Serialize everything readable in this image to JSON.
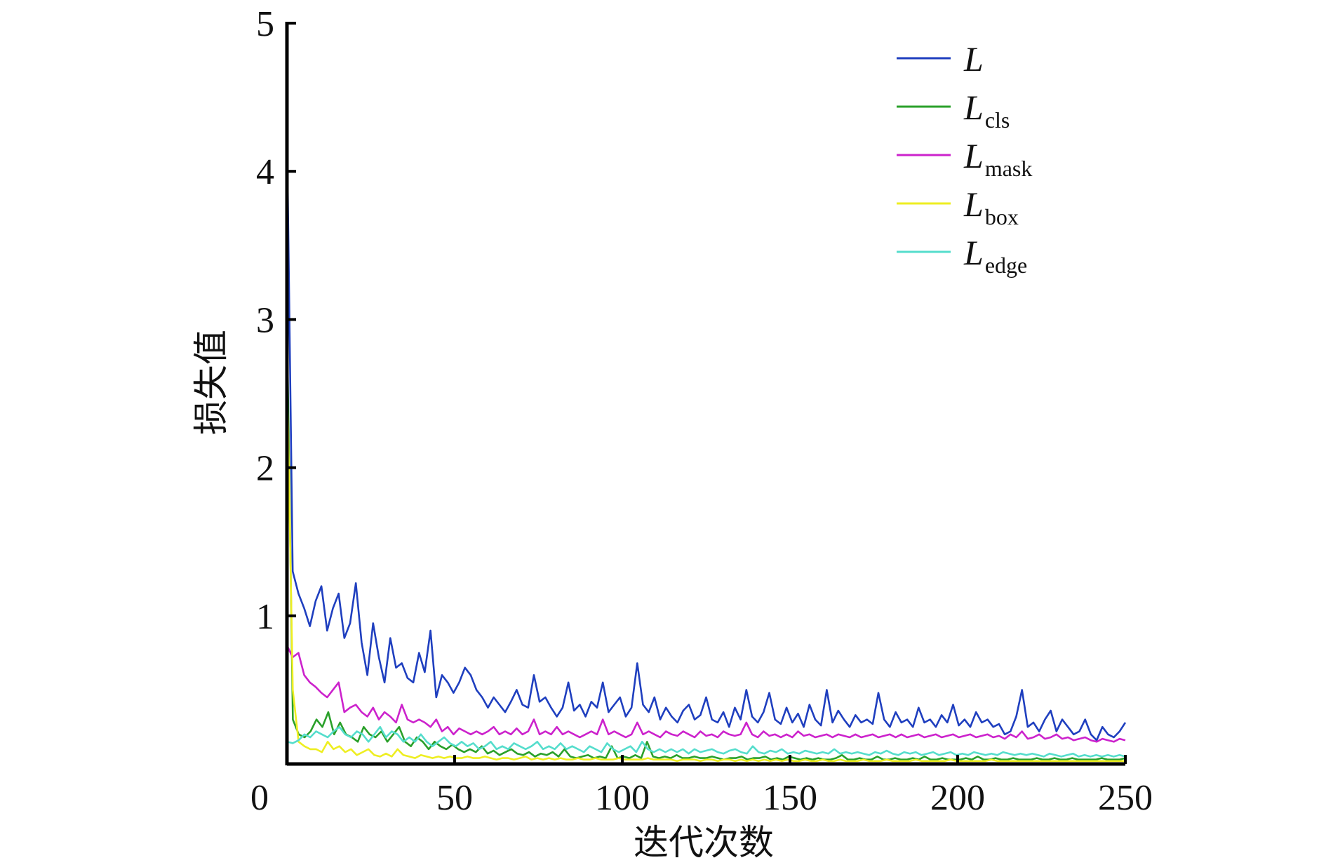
{
  "chart_data": {
    "type": "line",
    "title": "",
    "xlabel": "迭代次数",
    "ylabel": "损失值",
    "xlim": [
      0,
      250
    ],
    "ylim": [
      0,
      5
    ],
    "xticks": [
      0,
      50,
      100,
      150,
      200,
      250
    ],
    "yticks": [
      1,
      2,
      3,
      4,
      5
    ],
    "grid": false,
    "legend_position": "top-right",
    "series": [
      {
        "name": "L",
        "main": "L",
        "sub": "",
        "color": "#1f3fbf",
        "values": [
          4.3,
          1.3,
          1.15,
          1.05,
          0.93,
          1.1,
          1.2,
          0.9,
          1.05,
          1.15,
          0.85,
          0.95,
          1.22,
          0.82,
          0.6,
          0.95,
          0.72,
          0.55,
          0.85,
          0.65,
          0.68,
          0.58,
          0.55,
          0.75,
          0.62,
          0.9,
          0.45,
          0.6,
          0.55,
          0.48,
          0.55,
          0.65,
          0.6,
          0.5,
          0.45,
          0.38,
          0.45,
          0.4,
          0.35,
          0.42,
          0.5,
          0.4,
          0.38,
          0.6,
          0.42,
          0.45,
          0.38,
          0.32,
          0.38,
          0.55,
          0.36,
          0.4,
          0.32,
          0.42,
          0.38,
          0.55,
          0.35,
          0.4,
          0.45,
          0.32,
          0.38,
          0.68,
          0.4,
          0.35,
          0.45,
          0.3,
          0.38,
          0.32,
          0.28,
          0.36,
          0.4,
          0.3,
          0.33,
          0.45,
          0.3,
          0.28,
          0.35,
          0.25,
          0.38,
          0.3,
          0.5,
          0.32,
          0.28,
          0.35,
          0.48,
          0.3,
          0.27,
          0.38,
          0.28,
          0.34,
          0.25,
          0.4,
          0.3,
          0.26,
          0.5,
          0.28,
          0.36,
          0.3,
          0.25,
          0.33,
          0.28,
          0.3,
          0.27,
          0.48,
          0.3,
          0.25,
          0.35,
          0.28,
          0.3,
          0.25,
          0.38,
          0.28,
          0.3,
          0.25,
          0.33,
          0.28,
          0.4,
          0.26,
          0.3,
          0.25,
          0.35,
          0.28,
          0.3,
          0.25,
          0.27,
          0.2,
          0.22,
          0.32,
          0.5,
          0.25,
          0.28,
          0.22,
          0.3,
          0.36,
          0.22,
          0.3,
          0.25,
          0.2,
          0.22,
          0.3,
          0.2,
          0.16,
          0.25,
          0.2,
          0.18,
          0.22,
          0.28
        ]
      },
      {
        "name": "Lcls",
        "main": "L",
        "sub": "cls",
        "color": "#2aa02a",
        "values": [
          3.0,
          0.3,
          0.2,
          0.18,
          0.22,
          0.3,
          0.25,
          0.35,
          0.2,
          0.28,
          0.2,
          0.18,
          0.15,
          0.25,
          0.2,
          0.18,
          0.22,
          0.15,
          0.2,
          0.25,
          0.15,
          0.12,
          0.18,
          0.15,
          0.1,
          0.15,
          0.12,
          0.1,
          0.13,
          0.1,
          0.08,
          0.1,
          0.08,
          0.12,
          0.07,
          0.09,
          0.06,
          0.08,
          0.1,
          0.07,
          0.06,
          0.08,
          0.05,
          0.07,
          0.06,
          0.08,
          0.05,
          0.1,
          0.05,
          0.04,
          0.05,
          0.06,
          0.04,
          0.05,
          0.04,
          0.12,
          0.04,
          0.05,
          0.04,
          0.06,
          0.04,
          0.15,
          0.05,
          0.04,
          0.05,
          0.04,
          0.06,
          0.04,
          0.04,
          0.05,
          0.04,
          0.04,
          0.05,
          0.04,
          0.03,
          0.04,
          0.04,
          0.05,
          0.03,
          0.04,
          0.04,
          0.05,
          0.03,
          0.04,
          0.03,
          0.05,
          0.04,
          0.03,
          0.04,
          0.03,
          0.04,
          0.03,
          0.03,
          0.04,
          0.06,
          0.03,
          0.03,
          0.04,
          0.03,
          0.03,
          0.05,
          0.03,
          0.03,
          0.04,
          0.03,
          0.03,
          0.04,
          0.03,
          0.05,
          0.03,
          0.03,
          0.04,
          0.03,
          0.03,
          0.03,
          0.04,
          0.03,
          0.05,
          0.03,
          0.03,
          0.04,
          0.03,
          0.03,
          0.04,
          0.03,
          0.03,
          0.03,
          0.04,
          0.03,
          0.03,
          0.04,
          0.03,
          0.03,
          0.04,
          0.03,
          0.03,
          0.03,
          0.03,
          0.04,
          0.03,
          0.03,
          0.03,
          0.04
        ]
      },
      {
        "name": "Lmask",
        "main": "L",
        "sub": "mask",
        "color": "#cc22cc",
        "values": [
          0.8,
          0.72,
          0.75,
          0.6,
          0.55,
          0.52,
          0.48,
          0.45,
          0.5,
          0.55,
          0.35,
          0.38,
          0.4,
          0.35,
          0.32,
          0.38,
          0.3,
          0.35,
          0.32,
          0.28,
          0.4,
          0.3,
          0.28,
          0.3,
          0.28,
          0.25,
          0.3,
          0.22,
          0.25,
          0.2,
          0.24,
          0.22,
          0.2,
          0.22,
          0.2,
          0.22,
          0.25,
          0.2,
          0.22,
          0.2,
          0.24,
          0.2,
          0.22,
          0.3,
          0.2,
          0.22,
          0.2,
          0.25,
          0.2,
          0.22,
          0.2,
          0.18,
          0.2,
          0.22,
          0.2,
          0.3,
          0.2,
          0.22,
          0.2,
          0.18,
          0.2,
          0.28,
          0.2,
          0.22,
          0.2,
          0.18,
          0.22,
          0.2,
          0.19,
          0.22,
          0.2,
          0.18,
          0.22,
          0.19,
          0.2,
          0.18,
          0.22,
          0.2,
          0.19,
          0.2,
          0.28,
          0.2,
          0.18,
          0.22,
          0.19,
          0.2,
          0.18,
          0.2,
          0.18,
          0.22,
          0.19,
          0.2,
          0.18,
          0.19,
          0.2,
          0.18,
          0.2,
          0.19,
          0.18,
          0.2,
          0.18,
          0.19,
          0.2,
          0.18,
          0.19,
          0.2,
          0.18,
          0.2,
          0.18,
          0.19,
          0.2,
          0.18,
          0.19,
          0.2,
          0.18,
          0.19,
          0.2,
          0.18,
          0.19,
          0.2,
          0.18,
          0.19,
          0.2,
          0.18,
          0.19,
          0.17,
          0.2,
          0.18,
          0.22,
          0.17,
          0.18,
          0.2,
          0.17,
          0.18,
          0.2,
          0.17,
          0.18,
          0.16,
          0.17,
          0.18,
          0.16,
          0.15,
          0.17,
          0.16,
          0.15,
          0.17,
          0.16
        ]
      },
      {
        "name": "Lbox",
        "main": "L",
        "sub": "box",
        "color": "#eeee22",
        "values": [
          2.7,
          0.5,
          0.15,
          0.12,
          0.1,
          0.1,
          0.08,
          0.15,
          0.1,
          0.12,
          0.08,
          0.1,
          0.06,
          0.08,
          0.1,
          0.06,
          0.05,
          0.07,
          0.05,
          0.1,
          0.06,
          0.05,
          0.04,
          0.06,
          0.05,
          0.04,
          0.05,
          0.04,
          0.05,
          0.04,
          0.04,
          0.05,
          0.04,
          0.04,
          0.05,
          0.04,
          0.03,
          0.04,
          0.04,
          0.03,
          0.04,
          0.05,
          0.03,
          0.04,
          0.03,
          0.04,
          0.03,
          0.04,
          0.03,
          0.03,
          0.04,
          0.03,
          0.03,
          0.04,
          0.03,
          0.03,
          0.03,
          0.04,
          0.03,
          0.03,
          0.03,
          0.03,
          0.04,
          0.03,
          0.03,
          0.03,
          0.03,
          0.02,
          0.03,
          0.03,
          0.03,
          0.02,
          0.03,
          0.03,
          0.02,
          0.03,
          0.03,
          0.02,
          0.03,
          0.02,
          0.03,
          0.02,
          0.03,
          0.02,
          0.03,
          0.02,
          0.03,
          0.02,
          0.02,
          0.03,
          0.02,
          0.02,
          0.03,
          0.02,
          0.02,
          0.03,
          0.02,
          0.02,
          0.02,
          0.03,
          0.02,
          0.02,
          0.02,
          0.03,
          0.02,
          0.02,
          0.02,
          0.02,
          0.03,
          0.02,
          0.02,
          0.02,
          0.02,
          0.02,
          0.03,
          0.02,
          0.02,
          0.02,
          0.02,
          0.02,
          0.02,
          0.03,
          0.02,
          0.02,
          0.02,
          0.02,
          0.02,
          0.02,
          0.02,
          0.02,
          0.02,
          0.02,
          0.02,
          0.02,
          0.02,
          0.02,
          0.02,
          0.02,
          0.02,
          0.02,
          0.02,
          0.02,
          0.02,
          0.02,
          0.02
        ]
      },
      {
        "name": "Ledge",
        "main": "L",
        "sub": "edge",
        "color": "#55ddcc",
        "values": [
          0.15,
          0.14,
          0.16,
          0.2,
          0.18,
          0.22,
          0.2,
          0.18,
          0.22,
          0.25,
          0.2,
          0.18,
          0.22,
          0.2,
          0.15,
          0.2,
          0.25,
          0.18,
          0.22,
          0.2,
          0.15,
          0.18,
          0.15,
          0.2,
          0.15,
          0.12,
          0.15,
          0.18,
          0.14,
          0.12,
          0.15,
          0.12,
          0.14,
          0.1,
          0.12,
          0.15,
          0.1,
          0.12,
          0.1,
          0.14,
          0.12,
          0.1,
          0.12,
          0.15,
          0.1,
          0.12,
          0.1,
          0.14,
          0.1,
          0.12,
          0.1,
          0.08,
          0.12,
          0.1,
          0.08,
          0.14,
          0.1,
          0.08,
          0.1,
          0.12,
          0.08,
          0.15,
          0.1,
          0.08,
          0.1,
          0.08,
          0.1,
          0.08,
          0.1,
          0.07,
          0.1,
          0.08,
          0.09,
          0.1,
          0.08,
          0.07,
          0.09,
          0.1,
          0.08,
          0.07,
          0.12,
          0.08,
          0.07,
          0.09,
          0.08,
          0.1,
          0.07,
          0.08,
          0.07,
          0.09,
          0.08,
          0.07,
          0.08,
          0.07,
          0.1,
          0.07,
          0.08,
          0.07,
          0.08,
          0.07,
          0.06,
          0.08,
          0.07,
          0.09,
          0.07,
          0.06,
          0.08,
          0.07,
          0.08,
          0.06,
          0.07,
          0.08,
          0.06,
          0.07,
          0.08,
          0.06,
          0.07,
          0.06,
          0.08,
          0.07,
          0.06,
          0.07,
          0.06,
          0.08,
          0.07,
          0.06,
          0.07,
          0.06,
          0.07,
          0.06,
          0.05,
          0.07,
          0.06,
          0.05,
          0.06,
          0.07,
          0.05,
          0.06,
          0.05,
          0.06,
          0.05,
          0.06,
          0.05,
          0.06,
          0.05
        ]
      }
    ]
  }
}
